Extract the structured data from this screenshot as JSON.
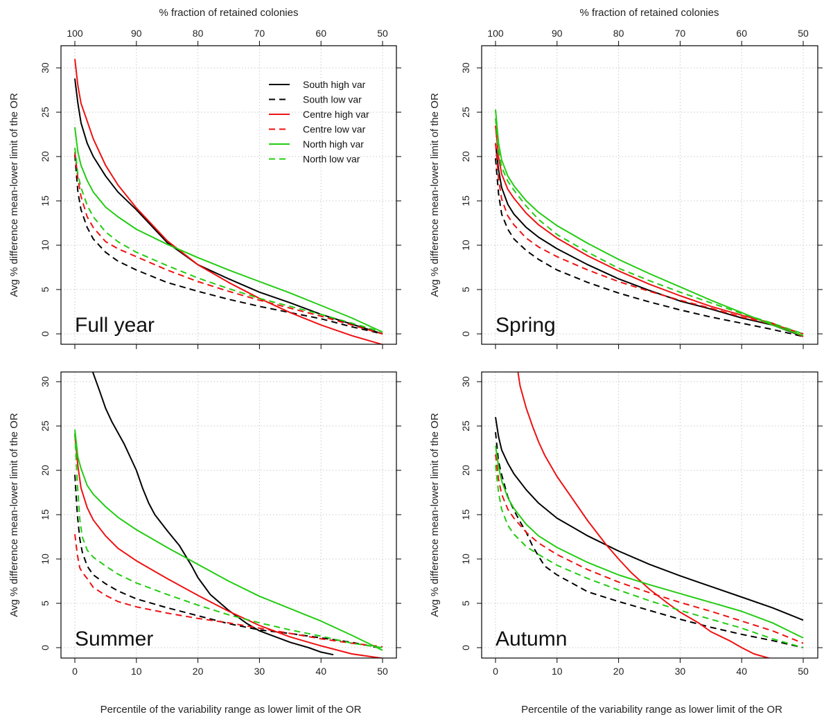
{
  "chart_data": [
    {
      "type": "line",
      "title": "Full year",
      "xlabel": "",
      "ylabel": "Avg % difference mean-lower limit of the OR",
      "top_xlabel": "% fraction of retained colonies",
      "xlim": [
        0,
        50
      ],
      "ylim": [
        0,
        30
      ],
      "x_ticks": [
        0,
        10,
        20,
        30,
        40,
        50
      ],
      "top_ticks": [
        100,
        90,
        80,
        70,
        60,
        50
      ],
      "y_ticks": [
        0,
        5,
        10,
        15,
        20,
        25,
        30
      ],
      "grid": true,
      "legend": "top-right",
      "series": [
        {
          "name": "South high var",
          "color": "#000000",
          "dash": false,
          "x": [
            0,
            0.5,
            1,
            2,
            3,
            5,
            7,
            10,
            15,
            20,
            25,
            30,
            35,
            40,
            45,
            50
          ],
          "y": [
            28.8,
            26,
            23.8,
            21.5,
            20,
            17.8,
            16,
            14,
            10.3,
            7.8,
            6.2,
            4.7,
            3.5,
            2.2,
            1.1,
            0
          ]
        },
        {
          "name": "South low var",
          "color": "#000000",
          "dash": true,
          "x": [
            0,
            0.5,
            1,
            2,
            3,
            5,
            7,
            10,
            15,
            20,
            25,
            30,
            35,
            40,
            45,
            50
          ],
          "y": [
            20.2,
            16,
            14,
            12,
            10.7,
            9.2,
            8.2,
            7.2,
            5.8,
            4.8,
            3.9,
            3.1,
            2.4,
            1.7,
            0.8,
            0
          ]
        },
        {
          "name": "Centre high var",
          "color": "#ee1111",
          "dash": false,
          "x": [
            0,
            0.5,
            1,
            2,
            3,
            5,
            7,
            10,
            15,
            20,
            25,
            30,
            35,
            40,
            45,
            50
          ],
          "y": [
            31,
            28,
            26,
            24,
            22,
            19,
            16.8,
            14.2,
            10.5,
            7.8,
            5.8,
            4,
            2.4,
            1,
            -0.2,
            -1.2
          ]
        },
        {
          "name": "Centre low var",
          "color": "#ee1111",
          "dash": true,
          "x": [
            0,
            0.5,
            1,
            2,
            3,
            5,
            7,
            10,
            15,
            20,
            25,
            30,
            35,
            40,
            45,
            50
          ],
          "y": [
            20.5,
            17.5,
            15.5,
            13.2,
            12,
            10.4,
            9.6,
            8.7,
            7.2,
            5.9,
            4.8,
            3.8,
            2.9,
            2,
            1,
            0
          ]
        },
        {
          "name": "North high var",
          "color": "#22cc11",
          "dash": false,
          "x": [
            0,
            0.5,
            1,
            2,
            3,
            5,
            7,
            10,
            15,
            20,
            25,
            30,
            35,
            40,
            45,
            50
          ],
          "y": [
            23.3,
            20.5,
            19,
            17.3,
            16,
            14.3,
            13.2,
            11.8,
            10.1,
            8.6,
            7.2,
            5.9,
            4.6,
            3.2,
            1.8,
            0.2
          ]
        },
        {
          "name": "North low var",
          "color": "#22cc11",
          "dash": true,
          "x": [
            0,
            0.5,
            1,
            2,
            3,
            5,
            7,
            10,
            15,
            20,
            25,
            30,
            35,
            40,
            45,
            50
          ],
          "y": [
            21,
            18,
            16.5,
            14.5,
            13.2,
            11.5,
            10.4,
            9.2,
            7.7,
            6.3,
            5.1,
            4,
            3.1,
            2.2,
            1.2,
            0.2
          ]
        }
      ]
    },
    {
      "type": "line",
      "title": "Spring",
      "xlabel": "",
      "ylabel": "Avg % difference mean-lower limit of the OR",
      "top_xlabel": "% fraction of retained colonies",
      "xlim": [
        0,
        50
      ],
      "ylim": [
        0,
        30
      ],
      "x_ticks": [
        0,
        10,
        20,
        30,
        40,
        50
      ],
      "top_ticks": [
        100,
        90,
        80,
        70,
        60,
        50
      ],
      "y_ticks": [
        0,
        5,
        10,
        15,
        20,
        25,
        30
      ],
      "grid": true,
      "series": [
        {
          "name": "South high var",
          "color": "#000000",
          "dash": false,
          "x": [
            0,
            0.5,
            1,
            2,
            3,
            5,
            7,
            10,
            15,
            20,
            25,
            30,
            35,
            40,
            45,
            50
          ],
          "y": [
            21.5,
            18.5,
            16.5,
            14.6,
            13.5,
            12,
            10.9,
            9.6,
            7.8,
            6.2,
            4.9,
            3.7,
            2.8,
            1.8,
            1,
            -0.3
          ]
        },
        {
          "name": "South low var",
          "color": "#000000",
          "dash": true,
          "x": [
            0,
            0.5,
            1,
            2,
            3,
            5,
            7,
            10,
            15,
            20,
            25,
            30,
            35,
            40,
            45,
            50
          ],
          "y": [
            19.8,
            15.8,
            13.5,
            11.8,
            10.7,
            9.4,
            8.4,
            7.2,
            5.8,
            4.6,
            3.6,
            2.7,
            1.9,
            1.2,
            0.5,
            -0.3
          ]
        },
        {
          "name": "Centre high var",
          "color": "#ee1111",
          "dash": false,
          "x": [
            0,
            0.5,
            1,
            2,
            3,
            5,
            7,
            10,
            15,
            20,
            25,
            30,
            35,
            40,
            45,
            50
          ],
          "y": [
            23.5,
            20,
            18,
            16.3,
            15.3,
            13.6,
            12.3,
            10.8,
            8.8,
            7.1,
            5.6,
            4.3,
            3.1,
            2.1,
            1.2,
            -0.3
          ]
        },
        {
          "name": "Centre low var",
          "color": "#ee1111",
          "dash": true,
          "x": [
            0,
            0.5,
            1,
            2,
            3,
            5,
            7,
            10,
            15,
            20,
            25,
            30,
            35,
            40,
            45,
            50
          ],
          "y": [
            21.5,
            17.5,
            15.2,
            13.3,
            12.3,
            10.8,
            9.8,
            8.7,
            7.2,
            5.9,
            4.8,
            3.8,
            2.9,
            1.9,
            1.1,
            0
          ]
        },
        {
          "name": "North high var",
          "color": "#22cc11",
          "dash": false,
          "x": [
            0,
            0.5,
            1,
            2,
            3,
            5,
            7,
            10,
            15,
            20,
            25,
            30,
            35,
            40,
            45,
            50
          ],
          "y": [
            25.3,
            21.5,
            19.6,
            17.8,
            16.7,
            15,
            13.7,
            12.2,
            10.2,
            8.4,
            6.8,
            5.3,
            3.8,
            2.4,
            1,
            -0.2
          ]
        },
        {
          "name": "North low var",
          "color": "#22cc11",
          "dash": true,
          "x": [
            0,
            0.5,
            1,
            2,
            3,
            5,
            7,
            10,
            15,
            20,
            25,
            30,
            35,
            40,
            45,
            50
          ],
          "y": [
            24.3,
            20.6,
            18.8,
            17.2,
            16.2,
            14.4,
            12.9,
            11.2,
            9.2,
            7.4,
            6,
            4.7,
            3.5,
            2.3,
            1.2,
            0
          ]
        }
      ]
    },
    {
      "type": "line",
      "title": "Summer",
      "xlabel": "Percentile of the variability range as lower limit of the OR",
      "ylabel": "Avg % difference mean-lower limit of the OR",
      "xlim": [
        0,
        50
      ],
      "ylim": [
        0,
        30
      ],
      "x_ticks": [
        0,
        10,
        20,
        30,
        40,
        50
      ],
      "y_ticks": [
        0,
        5,
        10,
        15,
        20,
        25,
        30
      ],
      "grid": true,
      "series": [
        {
          "name": "South high var",
          "color": "#000000",
          "dash": false,
          "x": [
            2.8,
            4,
            5,
            6,
            8,
            10,
            11,
            12,
            13,
            15,
            17,
            19,
            20,
            22,
            25,
            28,
            30,
            35,
            38,
            40,
            42
          ],
          "y": [
            31.3,
            29,
            27,
            25.5,
            23,
            20,
            18,
            16.3,
            15,
            13.2,
            11.5,
            9.2,
            7.9,
            6,
            4.2,
            2.7,
            1.9,
            0.6,
            0,
            -0.5,
            -0.8
          ]
        },
        {
          "name": "South low var",
          "color": "#000000",
          "dash": true,
          "x": [
            0,
            0.4,
            0.8,
            1.2,
            2,
            3,
            5,
            7,
            10,
            15,
            20,
            25,
            30,
            35,
            40,
            45,
            50
          ],
          "y": [
            19.5,
            15,
            12.3,
            10.8,
            9.2,
            8.2,
            7.2,
            6.4,
            5.5,
            4.5,
            3.6,
            2.7,
            2,
            1.6,
            1.1,
            0.6,
            -0.1
          ]
        },
        {
          "name": "Centre high var",
          "color": "#ee1111",
          "dash": false,
          "x": [
            0,
            0.5,
            1,
            2,
            3,
            5,
            7,
            10,
            15,
            20,
            25,
            30,
            35,
            40,
            45,
            50
          ],
          "y": [
            24,
            20.5,
            18,
            15.8,
            14.4,
            12.6,
            11.2,
            9.8,
            7.8,
            5.9,
            4.1,
            2.5,
            1.2,
            0.2,
            -0.7,
            -1.2
          ]
        },
        {
          "name": "Centre low var",
          "color": "#ee1111",
          "dash": true,
          "x": [
            0,
            0.4,
            0.8,
            1.2,
            2,
            3,
            5,
            7,
            10,
            15,
            20,
            25,
            30,
            35,
            40,
            45,
            50
          ],
          "y": [
            12.8,
            10.5,
            9,
            8.5,
            7.8,
            6.8,
            5.9,
            5.2,
            4.6,
            3.9,
            3.3,
            2.8,
            2.2,
            1.6,
            1,
            0.5,
            0.1
          ]
        },
        {
          "name": "North high var",
          "color": "#22cc11",
          "dash": false,
          "x": [
            0,
            0.5,
            1,
            2,
            3,
            5,
            7,
            10,
            15,
            20,
            25,
            30,
            35,
            40,
            45,
            50
          ],
          "y": [
            24.6,
            21.5,
            20.2,
            18.3,
            17.3,
            15.9,
            14.7,
            13.3,
            11.3,
            9.4,
            7.5,
            5.8,
            4.4,
            3,
            1.4,
            -0.3
          ]
        },
        {
          "name": "North low var",
          "color": "#22cc11",
          "dash": true,
          "x": [
            0,
            0.4,
            0.8,
            1.2,
            2,
            3,
            5,
            7,
            10,
            15,
            20,
            25,
            30,
            35,
            40,
            45,
            50
          ],
          "y": [
            24.2,
            18.5,
            14.5,
            12.5,
            11,
            10.2,
            9.2,
            8.3,
            7.3,
            6,
            4.8,
            3.7,
            2.8,
            2,
            1.3,
            0.5,
            0
          ]
        }
      ]
    },
    {
      "type": "line",
      "title": "Autumn",
      "xlabel": "Percentile of the variability range as lower limit of the OR",
      "ylabel": "Avg % difference mean-lower limit of the OR",
      "xlim": [
        0,
        50
      ],
      "ylim": [
        0,
        30
      ],
      "x_ticks": [
        0,
        10,
        20,
        30,
        40,
        50
      ],
      "y_ticks": [
        0,
        5,
        10,
        15,
        20,
        25,
        30
      ],
      "grid": true,
      "series": [
        {
          "name": "South high var",
          "color": "#000000",
          "dash": false,
          "x": [
            0,
            0.5,
            1,
            2,
            3,
            5,
            7,
            10,
            15,
            20,
            25,
            30,
            35,
            40,
            45,
            50
          ],
          "y": [
            26,
            23.8,
            22.3,
            20.8,
            19.6,
            17.8,
            16.3,
            14.6,
            12.6,
            10.9,
            9.4,
            8.1,
            6.9,
            5.7,
            4.5,
            3.1
          ]
        },
        {
          "name": "South low var",
          "color": "#000000",
          "dash": true,
          "x": [
            0,
            0.5,
            1,
            2,
            3,
            4,
            5,
            6,
            7,
            8,
            10,
            15,
            20,
            25,
            30,
            35,
            40,
            45,
            50
          ],
          "y": [
            24.3,
            21,
            19.5,
            17,
            15.5,
            14.2,
            13,
            11.5,
            10.3,
            9.2,
            8.2,
            6.3,
            5.2,
            4.2,
            3.2,
            2.3,
            1.5,
            0.8,
            0
          ]
        },
        {
          "name": "Centre high var",
          "color": "#ee1111",
          "dash": false,
          "x": [
            3.6,
            4,
            5,
            6,
            7,
            8,
            10,
            12,
            15,
            18,
            20,
            22,
            25,
            28,
            30,
            33,
            35,
            38,
            40,
            42,
            45
          ],
          "y": [
            31.3,
            29.5,
            27,
            25,
            23.2,
            21.7,
            19.3,
            17.3,
            14.3,
            11.6,
            10,
            8.5,
            6.6,
            5,
            4,
            2.8,
            1.8,
            0.8,
            0,
            -0.7,
            -1.3
          ]
        },
        {
          "name": "Centre low var",
          "color": "#ee1111",
          "dash": true,
          "x": [
            0,
            0.5,
            1,
            2,
            3,
            5,
            7,
            10,
            15,
            20,
            25,
            30,
            35,
            40,
            45,
            50
          ],
          "y": [
            21.8,
            19,
            17.3,
            15.6,
            14.6,
            13,
            11.8,
            10.5,
            8.8,
            7.4,
            6.2,
            5.1,
            4.1,
            3,
            1.9,
            0.5
          ]
        },
        {
          "name": "North high var",
          "color": "#22cc11",
          "dash": false,
          "x": [
            0,
            0.5,
            1,
            2,
            3,
            5,
            7,
            10,
            15,
            20,
            25,
            30,
            35,
            40,
            45,
            50
          ],
          "y": [
            22.8,
            20.4,
            18.8,
            16.9,
            15.7,
            13.9,
            12.6,
            11.3,
            9.6,
            8.2,
            7.1,
            6.1,
            5.1,
            4.1,
            2.8,
            1.1
          ]
        },
        {
          "name": "North low var",
          "color": "#22cc11",
          "dash": true,
          "x": [
            0,
            0.5,
            1,
            2,
            3,
            5,
            7,
            10,
            15,
            20,
            25,
            30,
            35,
            40,
            45,
            50
          ],
          "y": [
            20.6,
            17.5,
            15.6,
            13.8,
            12.8,
            11.4,
            10.5,
            9.3,
            7.8,
            6.5,
            5.3,
            4.2,
            3.2,
            2.2,
            1,
            0
          ]
        }
      ]
    }
  ]
}
